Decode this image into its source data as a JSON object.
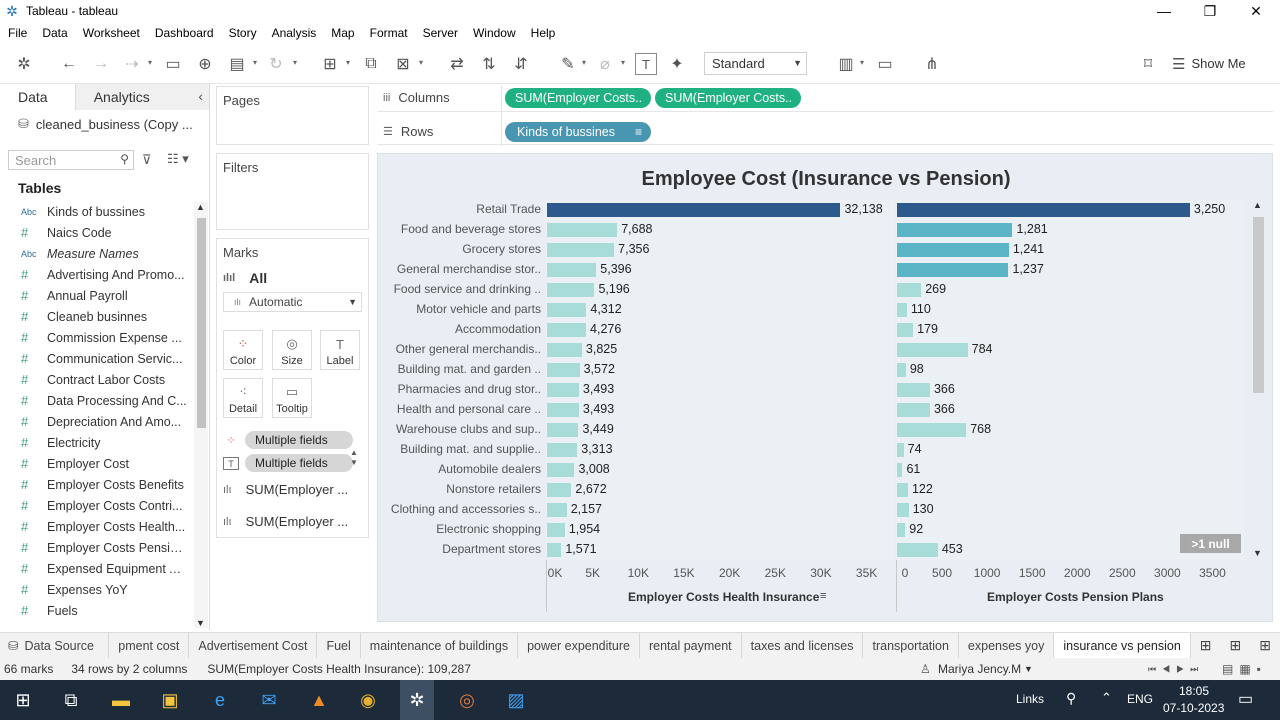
{
  "window": {
    "title": "Tableau - tableau"
  },
  "menu": [
    "File",
    "Data",
    "Worksheet",
    "Dashboard",
    "Story",
    "Analysis",
    "Map",
    "Format",
    "Server",
    "Window",
    "Help"
  ],
  "toolbar": {
    "fit_select": "Standard",
    "show_me": "Show Me"
  },
  "data_pane": {
    "tab_data": "Data",
    "tab_analytics": "Analytics",
    "source": "cleaned_business (Copy ...",
    "search_placeholder": "Search",
    "tables_heading": "Tables",
    "fields": [
      {
        "type": "Abc",
        "name": "Kinds of bussines",
        "italic": false
      },
      {
        "type": "#",
        "name": "Naics Code",
        "italic": false
      },
      {
        "type": "Abc",
        "name": "Measure Names",
        "italic": true
      },
      {
        "type": "#",
        "name": "Advertising And Promo...",
        "italic": false
      },
      {
        "type": "#",
        "name": "Annual Payroll",
        "italic": false
      },
      {
        "type": "#",
        "name": "Cleaneb businnes",
        "italic": false
      },
      {
        "type": "#",
        "name": "Commission Expense ...",
        "italic": false
      },
      {
        "type": "#",
        "name": "Communication Servic...",
        "italic": false
      },
      {
        "type": "#",
        "name": "Contract Labor Costs",
        "italic": false
      },
      {
        "type": "#",
        "name": "Data Processing And C...",
        "italic": false
      },
      {
        "type": "#",
        "name": "Depreciation And Amo...",
        "italic": false
      },
      {
        "type": "#",
        "name": "Electricity",
        "italic": false
      },
      {
        "type": "#",
        "name": "Employer Cost",
        "italic": false
      },
      {
        "type": "#",
        "name": "Employer Costs Benefits",
        "italic": false
      },
      {
        "type": "#",
        "name": "Employer Costs Contri...",
        "italic": false
      },
      {
        "type": "#",
        "name": "Employer Costs Health...",
        "italic": false
      },
      {
        "type": "#",
        "name": "Employer Costs Pensio...",
        "italic": false
      },
      {
        "type": "#",
        "name": "Expensed Equipment A...",
        "italic": false
      },
      {
        "type": "#",
        "name": "Expenses YoY",
        "italic": false
      },
      {
        "type": "#",
        "name": "Fuels",
        "italic": false
      }
    ]
  },
  "pages_card": {
    "title": "Pages"
  },
  "filters_card": {
    "title": "Filters"
  },
  "marks_card": {
    "title": "Marks",
    "all": "All",
    "mark_type": "Automatic",
    "buttons": {
      "color": "Color",
      "size": "Size",
      "label": "Label",
      "detail": "Detail",
      "tooltip": "Tooltip"
    },
    "pill1": "Multiple fields",
    "pill2": "Multiple fields",
    "measure1": "SUM(Employer ...",
    "measure2": "SUM(Employer ..."
  },
  "shelves": {
    "columns_label": "Columns",
    "rows_label": "Rows",
    "column_pills": [
      "SUM(Employer Costs..",
      "SUM(Employer Costs.."
    ],
    "row_pill": "Kinds of bussines"
  },
  "chart_data": {
    "type": "bar",
    "title": "Employee Cost (Insurance vs Pension)",
    "categories": [
      "Retail Trade",
      "Food and beverage stores",
      "Grocery stores",
      "General merchandise stor..",
      "Food service and drinking ..",
      "Motor vehicle and parts",
      "Accommodation",
      "Other general merchandis..",
      "Building mat. and garden ..",
      "Pharmacies and drug stor..",
      "Health and personal care ..",
      "Warehouse clubs and sup..",
      "Building mat. and supplie..",
      "Automobile dealers",
      "Nonstore retailers",
      "Clothing and accessories s..",
      "Electronic shopping",
      "Department stores"
    ],
    "series": [
      {
        "name": "Employer Costs Health Insurance",
        "values": [
          32138,
          7688,
          7356,
          5396,
          5196,
          4312,
          4276,
          3825,
          3572,
          3493,
          3493,
          3449,
          3313,
          3008,
          2672,
          2157,
          1954,
          1571
        ],
        "labels": [
          "32,138",
          "7,688",
          "7,356",
          "5,396",
          "5,196",
          "4,312",
          "4,276",
          "3,825",
          "3,572",
          "3,493",
          "3,493",
          "3,449",
          "3,313",
          "3,008",
          "2,672",
          "2,157",
          "1,954",
          "1,571"
        ],
        "xlim": [
          0,
          38000
        ],
        "ticks": [
          "0K",
          "5K",
          "10K",
          "15K",
          "20K",
          "25K",
          "30K",
          "35K"
        ],
        "tick_values": [
          0,
          5000,
          10000,
          15000,
          20000,
          25000,
          30000,
          35000
        ],
        "xlabel": "Employer Costs Health Insurance"
      },
      {
        "name": "Employer Costs Pension Plans",
        "values": [
          3250,
          1281,
          1241,
          1237,
          269,
          110,
          179,
          784,
          98,
          366,
          366,
          768,
          74,
          61,
          122,
          130,
          92,
          453
        ],
        "labels": [
          "3,250",
          "1,281",
          "1,241",
          "1,237",
          "269",
          "110",
          "179",
          "784",
          "98",
          "366",
          "366",
          "768",
          "74",
          "61",
          "122",
          "130",
          "92",
          "453"
        ],
        "xlim": [
          0,
          3850
        ],
        "ticks": [
          "0",
          "500",
          "1000",
          "1500",
          "2000",
          "2500",
          "3000",
          "3500"
        ],
        "tick_values": [
          0,
          500,
          1000,
          1500,
          2000,
          2500,
          3000,
          3500
        ],
        "xlabel": "Employer Costs Pension Plans"
      }
    ],
    "colors": {
      "dark": "#2c5a8c",
      "light": "#a7dcd8",
      "mid": "#5cb5c6"
    }
  },
  "null_indicator": ">1 null",
  "sheet_tabs": {
    "data_source": "Data Source",
    "tabs": [
      "pment cost",
      "Advertisement Cost",
      "Fuel",
      "maintenance of buildings",
      "power expenditure",
      "rental payment",
      "taxes and licenses",
      "transportation",
      "expenses yoy",
      "insurance vs pension"
    ],
    "active": "insurance vs pension"
  },
  "status": {
    "marks": "66 marks",
    "dims": "34 rows by 2 columns",
    "sum": "SUM(Employer Costs Health Insurance): 109,287",
    "user": "Mariya Jency.M"
  },
  "taskbar": {
    "links": "Links",
    "lang": "ENG",
    "time": "18:05",
    "date": "07-10-2023"
  }
}
